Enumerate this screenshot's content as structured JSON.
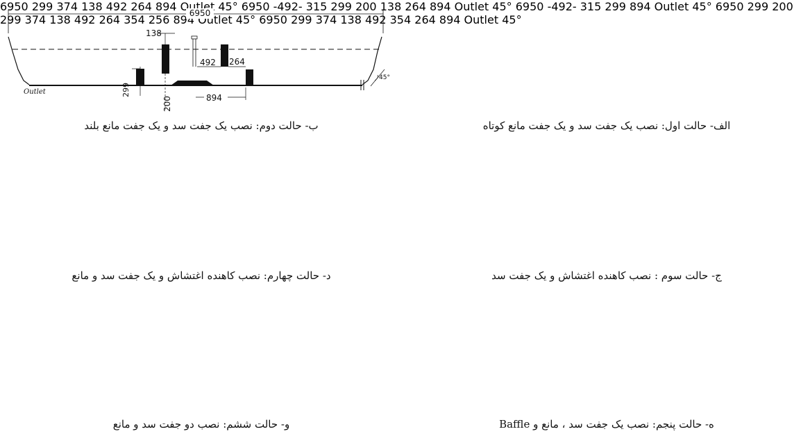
{
  "panels": [
    {
      "id": "b",
      "caption": "ب- حالت دوم: نصب یک جفت سد و یک جفت مانع بلند",
      "labels": {
        "total": "6950",
        "d138": "138",
        "d492": "492",
        "d264": "264",
        "d299": "299",
        "d200": "200",
        "d894": "894",
        "outlet": "Outlet"
      }
    },
    {
      "id": "alef",
      "caption": "الف- حالت اول: نصب یک جفت سد و یک جفت مانع کوتاه",
      "labels": {
        "total": "6950",
        "d138": "138",
        "d492": "492",
        "d264": "264",
        "d299": "299",
        "d374": "374",
        "d894": "894",
        "outlet": "Outlet"
      }
    },
    {
      "id": "dal",
      "caption": "د- حالت چهارم: نصب کاهنده اغتشاش و یک جفت سد و مانع",
      "labels": {
        "total": "6950",
        "d138": "138",
        "d492": "-492-",
        "d315": "315",
        "d264": "264",
        "d299": "299",
        "d200": "200",
        "d894": "894",
        "outlet": "Outlet"
      }
    },
    {
      "id": "jim",
      "caption": "ج- حالت سوم : نصب کاهنده اغتشاش و یک جفت سد",
      "labels": {
        "total": "6950",
        "d492": "-492-",
        "d315": "315",
        "d299": "299",
        "d894": "894",
        "outlet": "Outlet"
      }
    },
    {
      "id": "vav",
      "caption": "و- حالت ششم: نصب دو جفت سد و مانع",
      "labels": {
        "total": "6950",
        "d138": "138",
        "d492": "492",
        "d264": "264",
        "d354": "354",
        "d256": "256",
        "d299a": "299",
        "d200": "200",
        "d299b": "299",
        "d374": "374",
        "d894": "894",
        "outlet": "Outlet"
      }
    },
    {
      "id": "he",
      "caption": "ه- حالت پنجم: نصب یک جفت سد ، مانع و Baffle",
      "labels": {
        "total": "6950",
        "d138": "138",
        "d492": "492",
        "d354": "354",
        "d264": "264",
        "d299": "299",
        "d374": "374",
        "d894": "894",
        "outlet": "Outlet"
      }
    }
  ],
  "angle_label": "45°"
}
